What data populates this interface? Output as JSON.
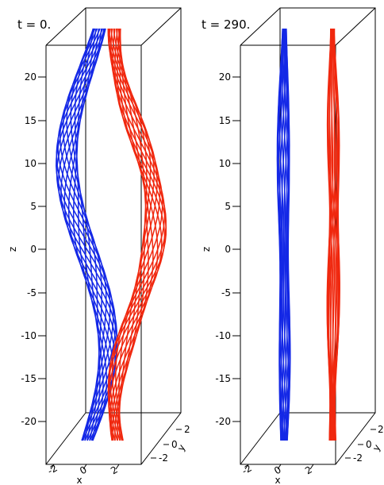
{
  "panels": [
    {
      "title": "t = 0.",
      "twist": 1,
      "z_ticks": [
        "20",
        "15",
        "10",
        "5",
        "0",
        "-5",
        "-10",
        "-15",
        "-20"
      ],
      "x_ticks": [
        "-2",
        "0",
        "2"
      ],
      "y_ticks": [
        "2",
        "0",
        "-2"
      ],
      "zlabel": "z",
      "xlabel": "x",
      "ylabel": "y"
    },
    {
      "title": "t = 290.",
      "twist": 0.18,
      "z_ticks": [
        "20",
        "15",
        "10",
        "5",
        "0",
        "-5",
        "-10",
        "-15",
        "-20"
      ],
      "x_ticks": [
        "-2",
        "0",
        "2"
      ],
      "y_ticks": [
        "2",
        "0",
        "-2"
      ],
      "zlabel": "z",
      "xlabel": "x",
      "ylabel": "y"
    }
  ],
  "colors": {
    "tube_left": "#1428e6",
    "tube_right": "#f0280f",
    "axes": "#000000"
  }
}
